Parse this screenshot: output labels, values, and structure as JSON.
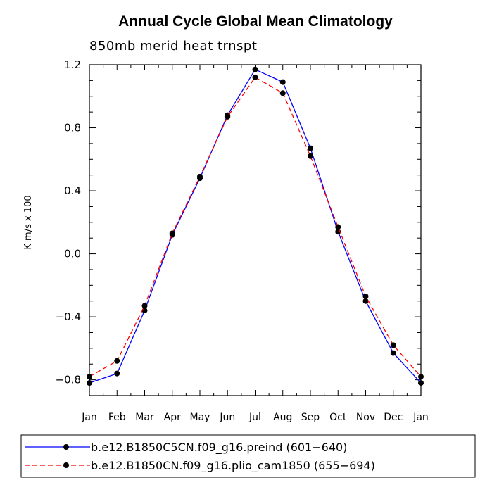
{
  "chart_data": {
    "type": "line",
    "title": "Annual Cycle Global Mean Climatology",
    "subtitle": "850mb merid heat trnspt",
    "xlabel": "",
    "ylabel": "K m/s x 100",
    "categories": [
      "Jan",
      "Feb",
      "Mar",
      "Apr",
      "May",
      "Jun",
      "Jul",
      "Aug",
      "Sep",
      "Oct",
      "Nov",
      "Dec",
      "Jan"
    ],
    "ylim": [
      -0.9,
      1.2
    ],
    "yticks": [
      -0.8,
      -0.4,
      0.0,
      0.4,
      0.8,
      1.2
    ],
    "ytick_labels": [
      "−0.8",
      "−0.4",
      "0.0",
      "0.4",
      "0.8",
      "1.2"
    ],
    "series": [
      {
        "name": "b.e12.B1850C5CN.f09_g16.preind (601−640)",
        "color": "#0000ff",
        "dash": "solid",
        "values": [
          -0.82,
          -0.76,
          -0.36,
          0.12,
          0.48,
          0.88,
          1.17,
          1.09,
          0.67,
          0.14,
          -0.3,
          -0.63,
          -0.82
        ]
      },
      {
        "name": "b.e12.B1850CN.f09_g16.plio_cam1850 (655−694)",
        "color": "#ff0000",
        "dash": "dashed",
        "values": [
          -0.78,
          -0.68,
          -0.33,
          0.13,
          0.49,
          0.87,
          1.12,
          1.02,
          0.62,
          0.17,
          -0.27,
          -0.58,
          -0.78
        ]
      }
    ],
    "legend_position": "bottom"
  }
}
